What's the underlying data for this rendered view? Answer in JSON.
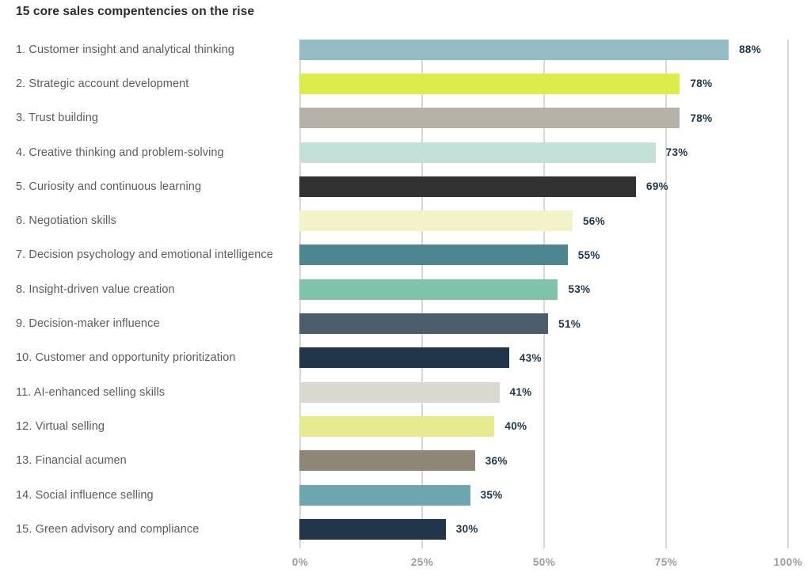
{
  "title": "15 core sales compentencies on the rise",
  "colors": {
    "background": "#ffffff",
    "gridline": "#d9d9d9",
    "category_label_text": "#5c5c5c",
    "value_label_text": "#1d3649",
    "axis_tick_text": "#9e9e9e",
    "title_text": "#2d2d2d"
  },
  "chart_data": {
    "type": "bar",
    "orientation": "horizontal",
    "title": "15 core sales compentencies on the rise",
    "categories": [
      "1. Customer insight and analytical thinking",
      "2. Strategic account development",
      "3. Trust building",
      "4. Creative thinking and problem-solving",
      "5. Curiosity and continuous learning",
      "6. Negotiation skills",
      "7. Decision psychology and emotional intelligence",
      "8. Insight-driven value creation",
      "9. Decision-maker influence",
      "10. Customer and opportunity prioritization",
      "11. AI-enhanced selling skills",
      "12. Virtual selling",
      "13. Financial acumen",
      "14. Social influence selling",
      "15. Green advisory and compliance"
    ],
    "values": [
      88,
      78,
      78,
      73,
      69,
      56,
      55,
      53,
      51,
      43,
      41,
      40,
      36,
      35,
      30
    ],
    "value_labels": [
      "88%",
      "78%",
      "78%",
      "73%",
      "69%",
      "56%",
      "55%",
      "53%",
      "51%",
      "43%",
      "41%",
      "40%",
      "36%",
      "35%",
      "30%"
    ],
    "bar_colors": [
      "#96bcc6",
      "#dcec48",
      "#b6b1a7",
      "#c3e1d9",
      "#313131",
      "#f4f2c9",
      "#4c8791",
      "#7ec3aa",
      "#4c5c6c",
      "#21354a",
      "#d9d8d1",
      "#e7eb90",
      "#8e8677",
      "#6ea6b0",
      "#21354a"
    ],
    "xlabel": "",
    "ylabel": "",
    "xlim": [
      0,
      100
    ],
    "x_ticks": [
      0,
      25,
      50,
      75,
      100
    ],
    "x_tick_labels": [
      "0%",
      "25%",
      "50%",
      "75%",
      "100%"
    ],
    "grid": true,
    "legend": false
  }
}
